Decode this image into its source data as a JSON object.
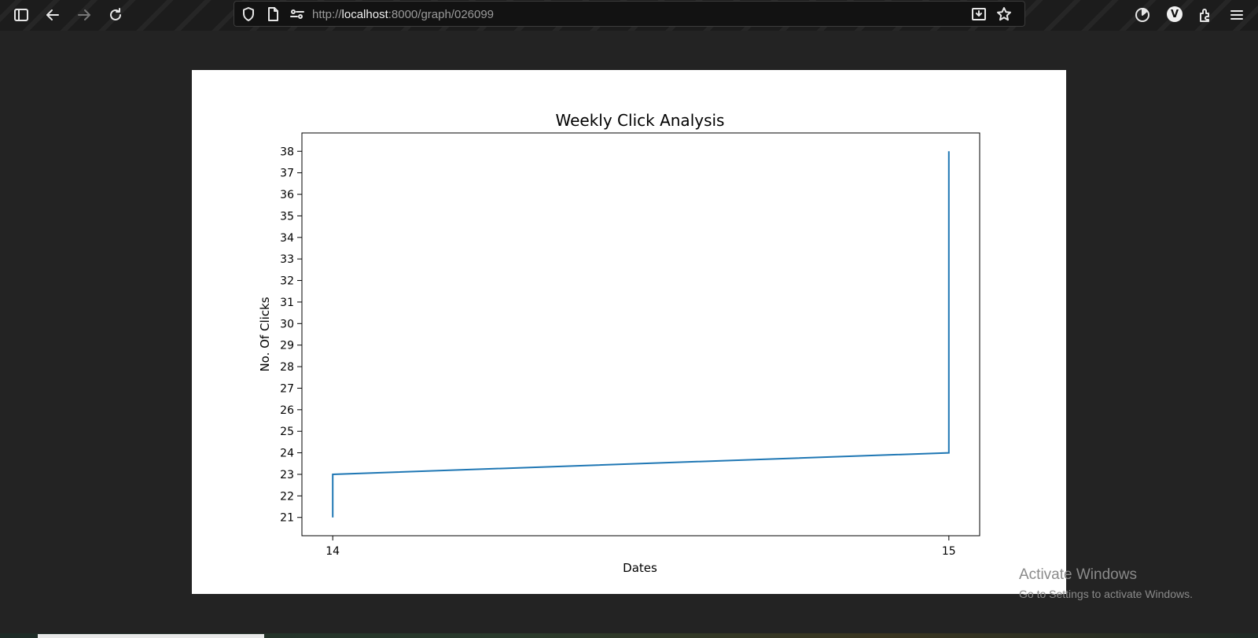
{
  "browser": {
    "url_prefix": "http://",
    "url_host": "localhost",
    "url_path": ":8000/graph/026099",
    "profile_initial": "V",
    "icons": [
      "sidebar-icon",
      "back-icon",
      "forward-icon",
      "reload-icon",
      "shield-icon",
      "page-icon",
      "permissions-icon",
      "save-to-pocket-icon",
      "bookmark-star-icon",
      "extension-timer-icon",
      "extensions-icon",
      "menu-icon"
    ]
  },
  "chart_data": {
    "type": "line",
    "title": "Weekly Click Analysis",
    "xlabel": "Dates",
    "ylabel": "No. Of Clicks",
    "x_ticks": [
      "14",
      "15"
    ],
    "y_ticks": [
      "21",
      "22",
      "23",
      "24",
      "25",
      "26",
      "27",
      "28",
      "29",
      "30",
      "31",
      "32",
      "33",
      "34",
      "35",
      "36",
      "37",
      "38"
    ],
    "xlim": [
      13.95,
      15.05
    ],
    "ylim": [
      20.15,
      38.85
    ],
    "line_color": "#1f77b4",
    "series": [
      {
        "x": [
          14,
          14,
          15,
          15
        ],
        "y": [
          21,
          23,
          24,
          38
        ]
      }
    ]
  },
  "watermark": {
    "title": "Activate Windows",
    "subtitle": "Go to Settings to activate Windows."
  }
}
